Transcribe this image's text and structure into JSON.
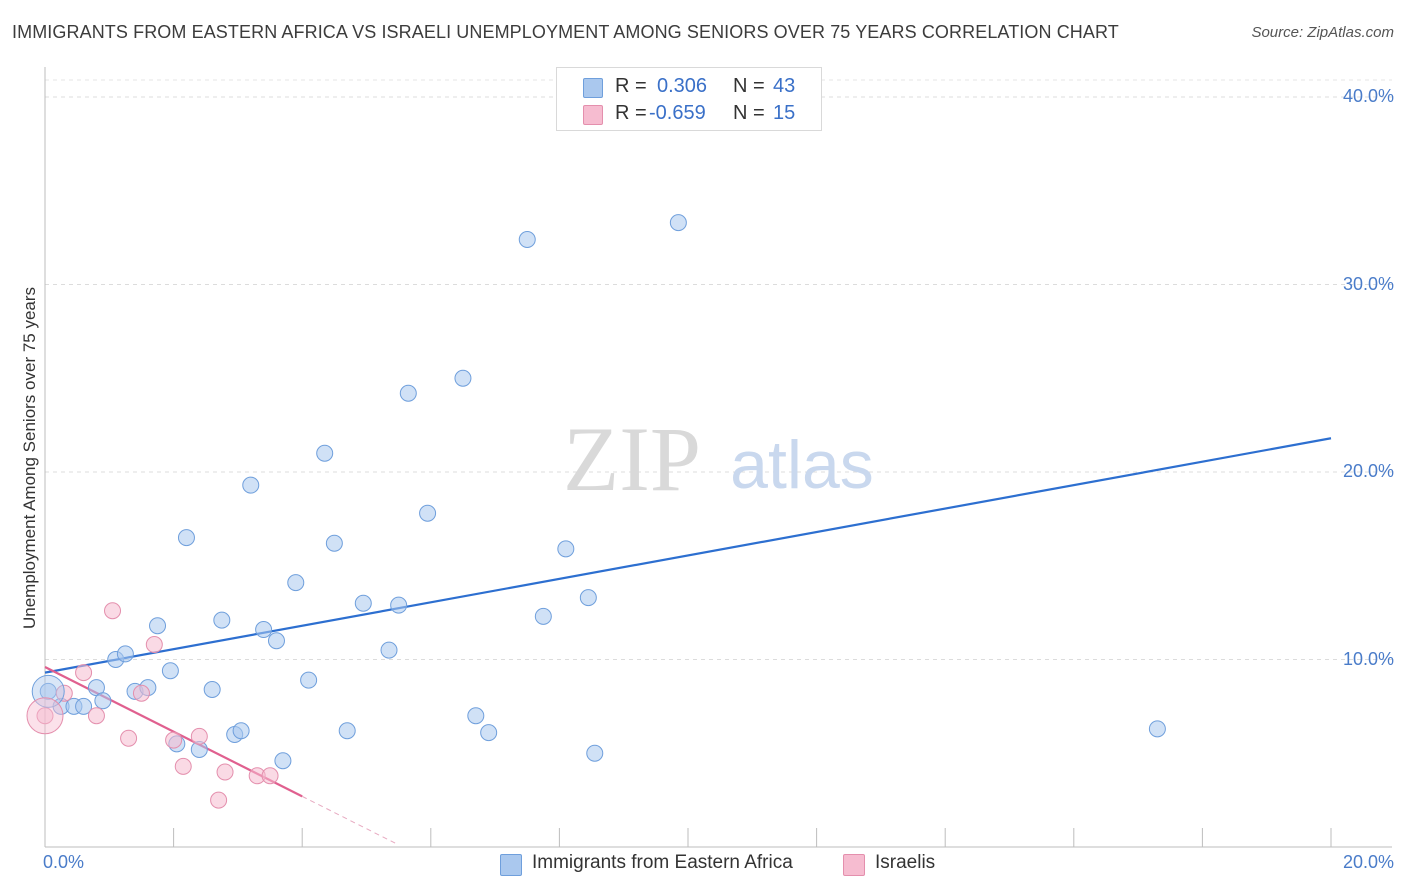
{
  "header": {
    "title": "IMMIGRANTS FROM EASTERN AFRICA VS ISRAELI UNEMPLOYMENT AMONG SENIORS OVER 75 YEARS CORRELATION CHART",
    "source": "Source: ZipAtlas.com"
  },
  "watermark": {
    "zip": "ZIP",
    "atlas": "atlas"
  },
  "legend_top": {
    "rows": [
      {
        "r_label": "R =",
        "r_value": "0.306",
        "n_label": "N =",
        "n_value": "43"
      },
      {
        "r_label": "R =",
        "r_value": "-0.659",
        "n_label": "N =",
        "n_value": "15"
      }
    ]
  },
  "legend_bottom": {
    "items": [
      {
        "label": "Immigrants from Eastern Africa"
      },
      {
        "label": "Israelis"
      }
    ]
  },
  "colors": {
    "blue_fill": "#aac8ee",
    "blue_stroke": "#6f9fdc",
    "blue_line": "#2d6fd0",
    "pink_fill": "#f6bcd0",
    "pink_stroke": "#e48fad",
    "pink_line": "#e0608f",
    "tick_text": "#4a7cc9"
  },
  "chart_data": {
    "type": "scatter",
    "title": "IMMIGRANTS FROM EASTERN AFRICA VS ISRAELI UNEMPLOYMENT AMONG SENIORS OVER 75 YEARS CORRELATION CHART",
    "xlabel": "",
    "ylabel": "Unemployment Among Seniors over 75 years",
    "xlim": [
      0,
      20
    ],
    "ylim": [
      0,
      40
    ],
    "x_tick_labels": [
      "0.0%",
      "20.0%"
    ],
    "y_tick_labels": [
      "10.0%",
      "20.0%",
      "30.0%",
      "40.0%"
    ],
    "y_ticks": [
      10,
      20,
      30,
      40
    ],
    "grid": true,
    "legend_position": "bottom",
    "series": [
      {
        "name": "Immigrants from Eastern Africa",
        "color": "blue",
        "points": [
          [
            0.05,
            8.3
          ],
          [
            0.25,
            7.5
          ],
          [
            0.45,
            7.5
          ],
          [
            0.6,
            7.5
          ],
          [
            0.8,
            8.5
          ],
          [
            0.9,
            7.8
          ],
          [
            1.1,
            10.0
          ],
          [
            1.25,
            10.3
          ],
          [
            1.4,
            8.3
          ],
          [
            1.6,
            8.5
          ],
          [
            1.75,
            11.8
          ],
          [
            1.95,
            9.4
          ],
          [
            2.05,
            5.5
          ],
          [
            2.2,
            16.5
          ],
          [
            2.4,
            5.2
          ],
          [
            2.6,
            8.4
          ],
          [
            2.75,
            12.1
          ],
          [
            2.95,
            6.0
          ],
          [
            3.05,
            6.2
          ],
          [
            3.2,
            19.3
          ],
          [
            3.4,
            11.6
          ],
          [
            3.6,
            11.0
          ],
          [
            3.7,
            4.6
          ],
          [
            3.9,
            14.1
          ],
          [
            4.1,
            8.9
          ],
          [
            4.35,
            21.0
          ],
          [
            4.5,
            16.2
          ],
          [
            4.7,
            6.2
          ],
          [
            4.95,
            13.0
          ],
          [
            5.35,
            10.5
          ],
          [
            5.5,
            12.9
          ],
          [
            5.65,
            24.2
          ],
          [
            5.95,
            17.8
          ],
          [
            6.5,
            25.0
          ],
          [
            6.7,
            7.0
          ],
          [
            6.9,
            6.1
          ],
          [
            7.5,
            32.4
          ],
          [
            7.75,
            12.3
          ],
          [
            8.1,
            15.9
          ],
          [
            8.45,
            13.3
          ],
          [
            8.55,
            5.0
          ],
          [
            9.85,
            33.3
          ],
          [
            17.3,
            6.3
          ]
        ]
      },
      {
        "name": "Israelis",
        "color": "pink",
        "points": [
          [
            0.0,
            7.0
          ],
          [
            0.3,
            8.2
          ],
          [
            0.6,
            9.3
          ],
          [
            0.8,
            7.0
          ],
          [
            1.05,
            12.6
          ],
          [
            1.3,
            5.8
          ],
          [
            1.5,
            8.2
          ],
          [
            1.7,
            10.8
          ],
          [
            2.0,
            5.7
          ],
          [
            2.15,
            4.3
          ],
          [
            2.4,
            5.9
          ],
          [
            2.7,
            2.5
          ],
          [
            2.8,
            4.0
          ],
          [
            3.3,
            3.8
          ],
          [
            3.5,
            3.8
          ]
        ]
      }
    ],
    "trend_lines": [
      {
        "series": "Immigrants from Eastern Africa",
        "x": [
          0.0,
          20.0
        ],
        "y": [
          9.3,
          21.8
        ]
      },
      {
        "series": "Israelis",
        "x": [
          0.0,
          4.0
        ],
        "y": [
          9.6,
          2.7
        ],
        "dashed_extension_to_x": 5.5
      }
    ]
  }
}
